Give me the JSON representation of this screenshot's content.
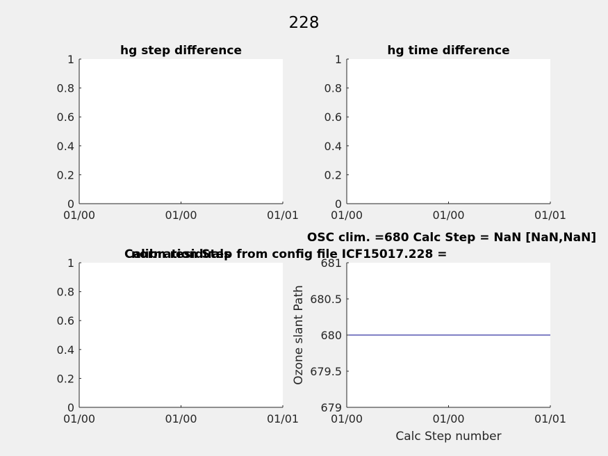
{
  "figure_title": "228",
  "chart_data": [
    {
      "type": "line",
      "title": "hg step difference",
      "xlabel": "",
      "ylabel": "",
      "x_ticks": [
        "01/00",
        "01/00",
        "01/01"
      ],
      "y_ticks": [
        "0",
        "0.2",
        "0.4",
        "0.6",
        "0.8",
        "1"
      ],
      "ylim": [
        0,
        1
      ],
      "grid": false,
      "series": []
    },
    {
      "type": "line",
      "title": "hg time difference",
      "xlabel": "",
      "ylabel": "",
      "x_ticks": [
        "01/00",
        "01/00",
        "01/01"
      ],
      "y_ticks": [
        "0",
        "0.2",
        "0.4",
        "0.6",
        "0.8",
        "1"
      ],
      "ylim": [
        0,
        1
      ],
      "grid": false,
      "series": []
    },
    {
      "type": "line",
      "title": "norm residuals",
      "xlabel": "",
      "ylabel": "",
      "x_ticks": [
        "01/00",
        "01/00",
        "01/01"
      ],
      "y_ticks": [
        "0",
        "0.2",
        "0.4",
        "0.6",
        "0.8",
        "1"
      ],
      "ylim": [
        0,
        1
      ],
      "grid": false,
      "series": []
    },
    {
      "type": "line",
      "title": "OSC clim. =680   Calc Step = NaN [NaN,NaN]",
      "subtitle": "Calibration Step from config file ICF15017.228 =",
      "xlabel": "Calc Step number",
      "ylabel": "Ozone slant Path",
      "x_ticks": [
        "01/00",
        "01/00",
        "01/01"
      ],
      "y_ticks": [
        "679",
        "679.5",
        "680",
        "680.5",
        "681"
      ],
      "ylim": [
        679,
        681
      ],
      "grid": false,
      "series": [
        {
          "color": "#00008b",
          "x": [
            0,
            1
          ],
          "values": [
            680,
            680
          ]
        }
      ]
    }
  ]
}
